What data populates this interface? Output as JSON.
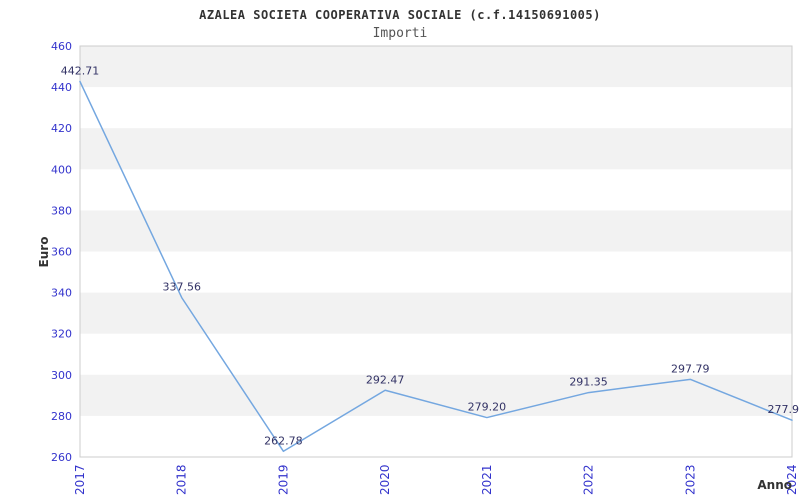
{
  "header": {
    "title": "AZALEA SOCIETA COOPERATIVA SOCIALE (c.f.14150691005)",
    "subtitle": "Importi"
  },
  "chart_data": {
    "type": "line",
    "title": "AZALEA SOCIETA COOPERATIVA SOCIALE (c.f.14150691005)",
    "subtitle": "Importi",
    "xlabel": "Anno",
    "ylabel": "Euro",
    "categories": [
      "2017",
      "2018",
      "2019",
      "2020",
      "2021",
      "2022",
      "2023",
      "2024"
    ],
    "series": [
      {
        "name": "Importi",
        "values": [
          442.71,
          337.56,
          262.78,
          292.47,
          279.2,
          291.35,
          297.79,
          277.9
        ],
        "point_labels": [
          "442.71",
          "337.56",
          "262.78",
          "292.47",
          "279.20",
          "291.35",
          "297.79",
          "277.9"
        ]
      }
    ],
    "ylim": [
      260,
      460
    ],
    "yticks": [
      260,
      280,
      300,
      320,
      340,
      360,
      380,
      400,
      420,
      440,
      460
    ],
    "grid": "alternating-horizontal-bands",
    "legend": "none",
    "colors": {
      "line": "#74a7e0",
      "tick_label": "#3333cc",
      "data_label": "#333366",
      "band": "#f2f2f2",
      "plot_border": "#cccccc",
      "title": "#333333",
      "subtitle": "#555555",
      "axis_title": "#333333",
      "background": "#ffffff"
    }
  }
}
